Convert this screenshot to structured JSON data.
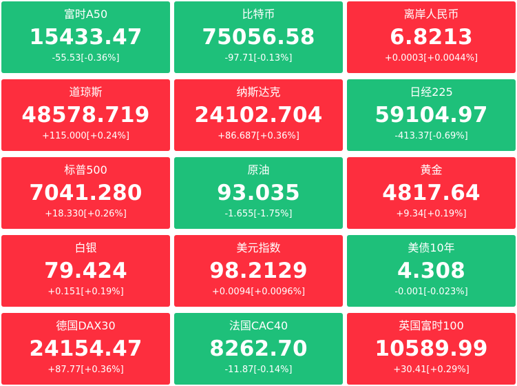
{
  "quotes": [
    {
      "name": "富时A50",
      "price": "15433.47",
      "change": "-55.53[-0.36%]",
      "trend": "down"
    },
    {
      "name": "比特币",
      "price": "75056.58",
      "change": "-97.71[-0.13%]",
      "trend": "down"
    },
    {
      "name": "离岸人民币",
      "price": "6.8213",
      "change": "+0.0003[+0.0044%]",
      "trend": "up"
    },
    {
      "name": "道琼斯",
      "price": "48578.719",
      "change": "+115.000[+0.24%]",
      "trend": "up"
    },
    {
      "name": "纳斯达克",
      "price": "24102.704",
      "change": "+86.687[+0.36%]",
      "trend": "up"
    },
    {
      "name": "日经225",
      "price": "59104.97",
      "change": "-413.37[-0.69%]",
      "trend": "down"
    },
    {
      "name": "标普500",
      "price": "7041.280",
      "change": "+18.330[+0.26%]",
      "trend": "up"
    },
    {
      "name": "原油",
      "price": "93.035",
      "change": "-1.655[-1.75%]",
      "trend": "down"
    },
    {
      "name": "黄金",
      "price": "4817.64",
      "change": "+9.34[+0.19%]",
      "trend": "up"
    },
    {
      "name": "白银",
      "price": "79.424",
      "change": "+0.151[+0.19%]",
      "trend": "up"
    },
    {
      "name": "美元指数",
      "price": "98.2129",
      "change": "+0.0094[+0.0096%]",
      "trend": "up"
    },
    {
      "name": "美债10年",
      "price": "4.308",
      "change": "-0.001[-0.023%]",
      "trend": "down"
    },
    {
      "name": "德国DAX30",
      "price": "24154.47",
      "change": "+87.77[+0.36%]",
      "trend": "up"
    },
    {
      "name": "法国CAC40",
      "price": "8262.70",
      "change": "-11.87[-0.14%]",
      "trend": "down"
    },
    {
      "name": "英国富时100",
      "price": "10589.99",
      "change": "+30.41[+0.29%]",
      "trend": "up"
    }
  ],
  "colors": {
    "up": "#fd2e3e",
    "down": "#1ec07a",
    "text": "#ffffff"
  }
}
